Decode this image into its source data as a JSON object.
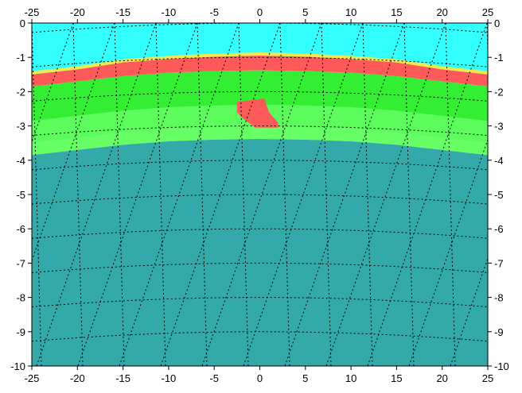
{
  "chart_data": {
    "type": "heatmap",
    "title": "",
    "xlabel": "",
    "ylabel": "",
    "xlim": [
      -25,
      25
    ],
    "ylim": [
      -10,
      0
    ],
    "x_ticks": [
      -25,
      -20,
      -15,
      -10,
      -5,
      0,
      5,
      10,
      15,
      20,
      25
    ],
    "y_ticks": [
      0,
      -1,
      -2,
      -3,
      -4,
      -5,
      -6,
      -7,
      -8,
      -9,
      -10
    ],
    "tick_labels_on": [
      "bottom",
      "top",
      "left",
      "right"
    ],
    "grid": "dotted triangulated mesh overlay",
    "colors": {
      "sky": "#33ffff",
      "surface_yellow": "#f0e850",
      "crust_red": "#ff5a5a",
      "bright_green": "#33ee33",
      "light_green": "#66ff66",
      "deep": "#33a9a9",
      "grid": "#000000"
    },
    "layers": [
      {
        "name": "",
        "color": "sky",
        "x": [
          -25,
          -20,
          -15,
          -10,
          -5,
          0,
          5,
          10,
          15,
          20,
          25
        ],
        "top": [
          0,
          0,
          0,
          0,
          0,
          0,
          0,
          0,
          0,
          0,
          0
        ],
        "bottom": [
          -1.5,
          -1.35,
          -1.15,
          -1.05,
          -0.98,
          -0.95,
          -0.98,
          -1.05,
          -1.15,
          -1.35,
          -1.5
        ]
      },
      {
        "name": "",
        "color": "crust_red",
        "x": [
          -25,
          -20,
          -15,
          -10,
          -5,
          0,
          5,
          10,
          15,
          20,
          25
        ],
        "top": [
          -1.5,
          -1.35,
          -1.15,
          -1.05,
          -0.98,
          -0.95,
          -0.98,
          -1.05,
          -1.15,
          -1.35,
          -1.5
        ],
        "bottom": [
          -1.85,
          -1.7,
          -1.55,
          -1.45,
          -1.4,
          -1.38,
          -1.4,
          -1.45,
          -1.55,
          -1.7,
          -1.85
        ]
      },
      {
        "name": "",
        "color": "bright_green",
        "x": [
          -25,
          -20,
          -15,
          -10,
          -5,
          0,
          5,
          10,
          15,
          20,
          25
        ],
        "top": [
          -1.85,
          -1.7,
          -1.55,
          -1.45,
          -1.4,
          -1.38,
          -1.4,
          -1.45,
          -1.55,
          -1.7,
          -1.85
        ],
        "bottom": [
          -3.5,
          -3.35,
          -3.2,
          -3.1,
          -3.05,
          -3.02,
          -3.05,
          -3.1,
          -3.2,
          -3.35,
          -3.5
        ]
      },
      {
        "name": "",
        "color": "light_green",
        "x": [
          -25,
          -20,
          -15,
          -10,
          -5,
          0,
          5,
          10,
          15,
          20,
          25
        ],
        "top": [
          -3.5,
          -3.35,
          -3.2,
          -3.1,
          -3.05,
          -3.02,
          -3.05,
          -3.1,
          -3.2,
          -3.35,
          -3.5
        ],
        "bottom": [
          -3.85,
          -3.7,
          -3.55,
          -3.45,
          -3.4,
          -3.38,
          -3.4,
          -3.45,
          -3.55,
          -3.7,
          -3.85
        ]
      },
      {
        "name": "",
        "color": "deep",
        "x": [
          -25,
          -20,
          -15,
          -10,
          -5,
          0,
          5,
          10,
          15,
          20,
          25
        ],
        "top": [
          -3.85,
          -3.7,
          -3.55,
          -3.45,
          -3.4,
          -3.38,
          -3.4,
          -3.45,
          -3.55,
          -3.7,
          -3.85
        ],
        "bottom": [
          -10,
          -10,
          -10,
          -10,
          -10,
          -10,
          -10,
          -10,
          -10,
          -10,
          -10
        ]
      }
    ],
    "anomaly": {
      "color": "crust_red",
      "polygon": [
        [
          -2.5,
          -2.3
        ],
        [
          0.5,
          -2.2
        ],
        [
          1.0,
          -2.6
        ],
        [
          2.0,
          -2.9
        ],
        [
          2.0,
          -3.05
        ],
        [
          -0.5,
          -3.05
        ],
        [
          -2.0,
          -2.75
        ],
        [
          -2.5,
          -2.6
        ]
      ]
    }
  }
}
